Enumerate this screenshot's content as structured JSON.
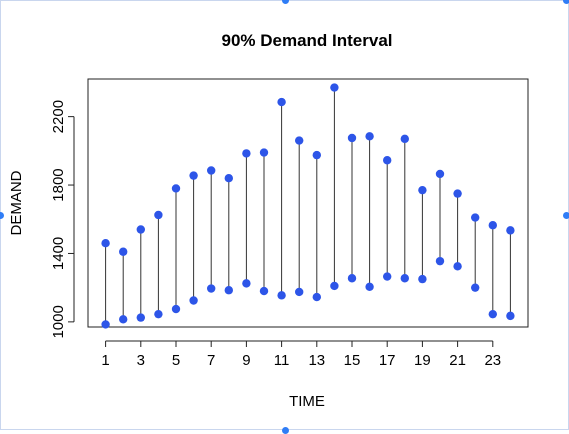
{
  "chart_data": {
    "type": "scatter",
    "title": "90% Demand Interval",
    "xlabel": "TIME",
    "ylabel": "DEMAND",
    "x": [
      1,
      2,
      3,
      4,
      5,
      6,
      7,
      8,
      9,
      10,
      11,
      12,
      13,
      14,
      15,
      16,
      17,
      18,
      19,
      20,
      21,
      22,
      23,
      24
    ],
    "series": [
      {
        "values": [
          1460,
          1410,
          1540,
          1625,
          1780,
          1855,
          1885,
          1840,
          1985,
          1990,
          2285,
          2060,
          1975,
          2370,
          2075,
          2085,
          1945,
          2070,
          1770,
          1865,
          1750,
          1610,
          1565,
          1535
        ]
      },
      {
        "values": [
          985,
          1015,
          1025,
          1045,
          1075,
          1125,
          1195,
          1185,
          1225,
          1180,
          1155,
          1175,
          1145,
          1210,
          1255,
          1205,
          1265,
          1255,
          1250,
          1355,
          1325,
          1200,
          1045,
          1035
        ]
      }
    ],
    "xticks": [
      1,
      3,
      5,
      7,
      9,
      11,
      13,
      15,
      17,
      19,
      21,
      23
    ],
    "yticks": [
      1000,
      1400,
      1800,
      2200
    ],
    "xlim": [
      0,
      25
    ],
    "ylim": [
      970,
      2420
    ],
    "grid": false,
    "colors": {
      "point": "#2d55e8",
      "segment": "#333333",
      "axis": "#222222"
    }
  }
}
